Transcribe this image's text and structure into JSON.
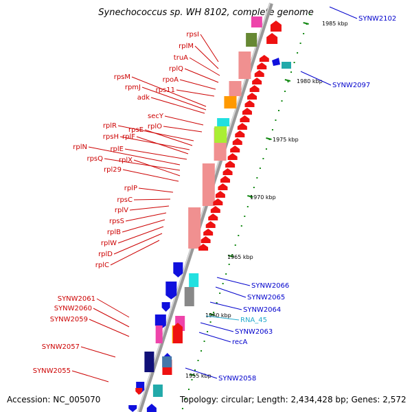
{
  "title": "Synechococcus sp. WH 8102, complete genome",
  "footer": {
    "accession": "Accession: NC_005070",
    "summary": "Topology: circular; Length: 2,434,428 bp; Genes: 2,572"
  },
  "ticks": [
    "1985 kbp",
    "1980 kbp",
    "1975 kbp",
    "1970 kbp",
    "1965 kbp",
    "1960 kbp",
    "1955 kbp"
  ],
  "left_labels": [
    "rpsI",
    "rplM",
    "truA",
    "rplQ",
    "rpoA",
    "rps11",
    "rpsM",
    "rpmJ",
    "adk",
    "secY",
    "rplO",
    "rplR",
    "rpsE",
    "rpsH",
    "rplF",
    "rplE",
    "rplN",
    "rpsQ",
    "rplX",
    "rpl29",
    "rplP",
    "rpsC",
    "rplV",
    "rpsS",
    "rplB",
    "rplW",
    "rplD",
    "rplC",
    "SYNW2061",
    "SYNW2060",
    "SYNW2059",
    "SYNW2057",
    "SYNW2055"
  ],
  "right_labels": [
    "SYNW2102",
    "SYNW2097",
    "SYNW2066",
    "SYNW2065",
    "SYNW2064",
    "RNA_45",
    "SYNW2063",
    "recA",
    "SYNW2058"
  ],
  "colors": {
    "left_label": "#cc0000",
    "right_label": "#0000cc",
    "rna_label": "#22aacc",
    "gene_red": "#ee1111",
    "gene_pink": "#f09090",
    "gene_blue": "#1010dd",
    "gene_cyan": "#22e0e0",
    "gene_gray": "#888888",
    "gene_orange": "#ff9900",
    "gene_lime": "#aaee33",
    "gene_magenta": "#ee44aa",
    "gene_olive": "#668833",
    "gene_navy": "#101077",
    "gene_steel": "#4477aa",
    "gene_teal": "#22aaaa",
    "backbone": "#888888",
    "tick": "#118811"
  }
}
